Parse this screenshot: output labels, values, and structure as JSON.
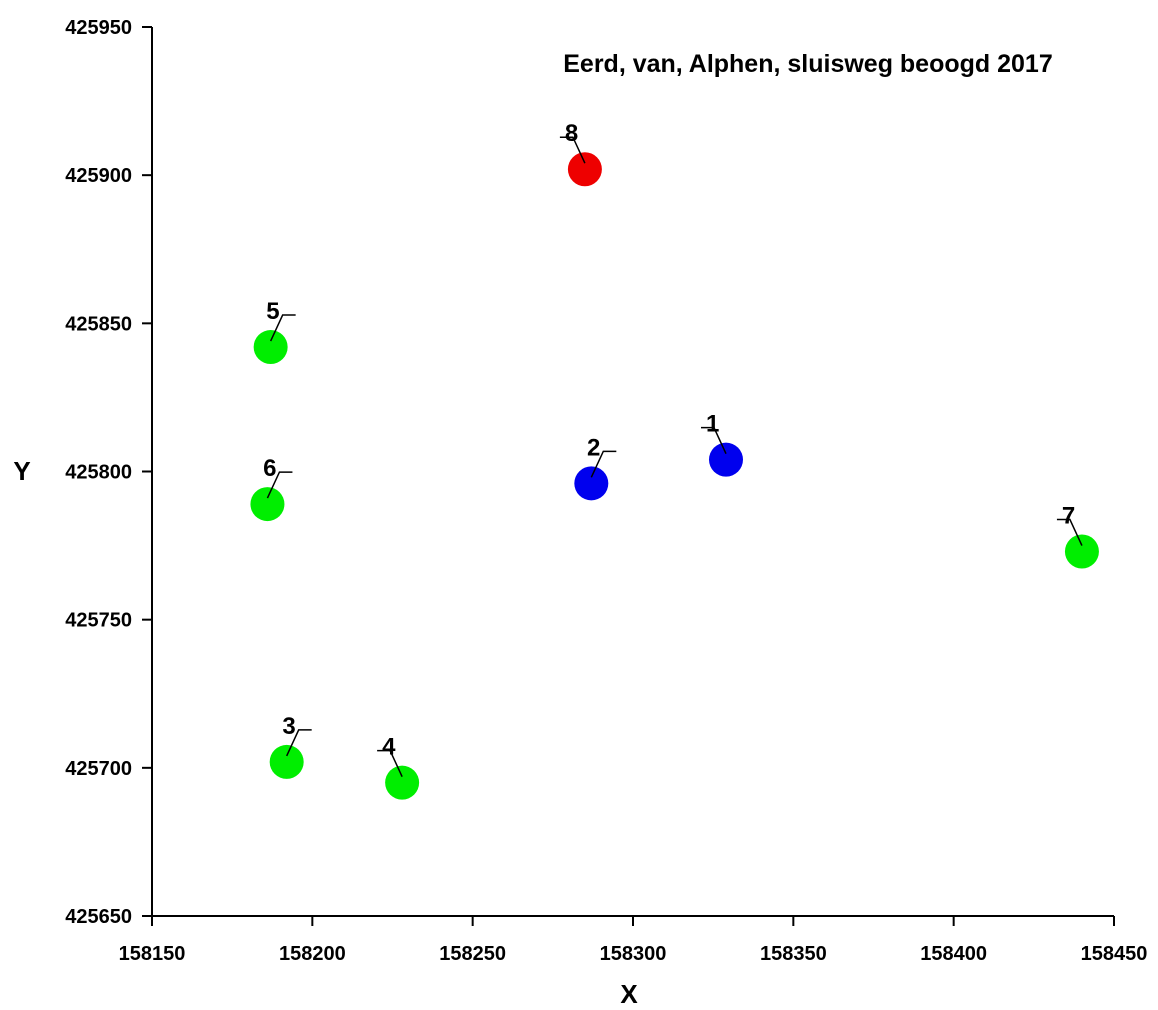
{
  "chart_data": {
    "type": "scatter",
    "title": "Eerd, van, Alphen, sluisweg beoogd 2017",
    "xlabel": "X",
    "ylabel": "Y",
    "xlim": [
      158150,
      158450
    ],
    "ylim": [
      425650,
      425950
    ],
    "xticks": [
      158150,
      158200,
      158250,
      158300,
      158350,
      158400,
      158450
    ],
    "yticks": [
      425650,
      425700,
      425750,
      425800,
      425850,
      425900,
      425950
    ],
    "grid": false,
    "colors": {
      "green": "#00ee00",
      "blue": "#0000ee",
      "red": "#ee0000"
    },
    "points": [
      {
        "label": "1",
        "x": 158329,
        "y": 425804,
        "color": "blue",
        "label_side": "left"
      },
      {
        "label": "2",
        "x": 158287,
        "y": 425796,
        "color": "blue",
        "label_side": "right"
      },
      {
        "label": "3",
        "x": 158192,
        "y": 425702,
        "color": "green",
        "label_side": "right"
      },
      {
        "label": "4",
        "x": 158228,
        "y": 425695,
        "color": "green",
        "label_side": "left"
      },
      {
        "label": "5",
        "x": 158187,
        "y": 425842,
        "color": "green",
        "label_side": "right"
      },
      {
        "label": "6",
        "x": 158186,
        "y": 425789,
        "color": "green",
        "label_side": "right"
      },
      {
        "label": "7",
        "x": 158440,
        "y": 425773,
        "color": "green",
        "label_side": "left"
      },
      {
        "label": "8",
        "x": 158285,
        "y": 425902,
        "color": "red",
        "label_side": "left"
      }
    ]
  }
}
